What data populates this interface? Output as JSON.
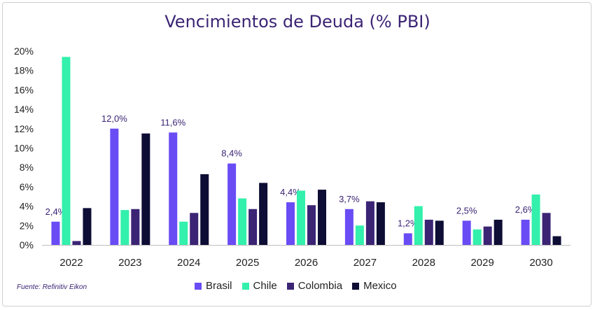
{
  "title": "Vencimientos de Deuda (% PBI)",
  "source": "Fuente: Refinitiv Eikon",
  "chart_data": {
    "type": "bar",
    "title": "Vencimientos de Deuda (% PBI)",
    "categories": [
      "2022",
      "2023",
      "2024",
      "2025",
      "2026",
      "2027",
      "2028",
      "2029",
      "2030"
    ],
    "ylim": [
      0,
      20
    ],
    "yticks": [
      "0%",
      "2%",
      "4%",
      "6%",
      "8%",
      "10%",
      "12%",
      "14%",
      "16%",
      "18%",
      "20%"
    ],
    "grid": false,
    "legend_position": "bottom",
    "series": [
      {
        "name": "Brasil",
        "color": "#6a4cf5",
        "values": [
          2.4,
          12.0,
          11.6,
          8.4,
          4.4,
          3.7,
          1.2,
          2.5,
          2.6
        ],
        "labels": [
          "2,4%",
          "12,0%",
          "11,6%",
          "8,4%",
          "4,4%",
          "3,7%",
          "1,2%",
          "2,5%",
          "2,6%"
        ]
      },
      {
        "name": "Chile",
        "color": "#33f0ac",
        "values": [
          19.4,
          3.6,
          2.4,
          4.8,
          5.6,
          2.0,
          4.0,
          1.6,
          5.2
        ]
      },
      {
        "name": "Colombia",
        "color": "#3b2474",
        "values": [
          0.4,
          3.7,
          3.3,
          3.7,
          4.1,
          4.5,
          2.6,
          1.9,
          3.3
        ]
      },
      {
        "name": "Mexico",
        "color": "#0d0d35",
        "values": [
          3.8,
          11.5,
          7.3,
          6.4,
          5.7,
          4.4,
          2.5,
          2.6,
          0.9
        ]
      }
    ]
  }
}
